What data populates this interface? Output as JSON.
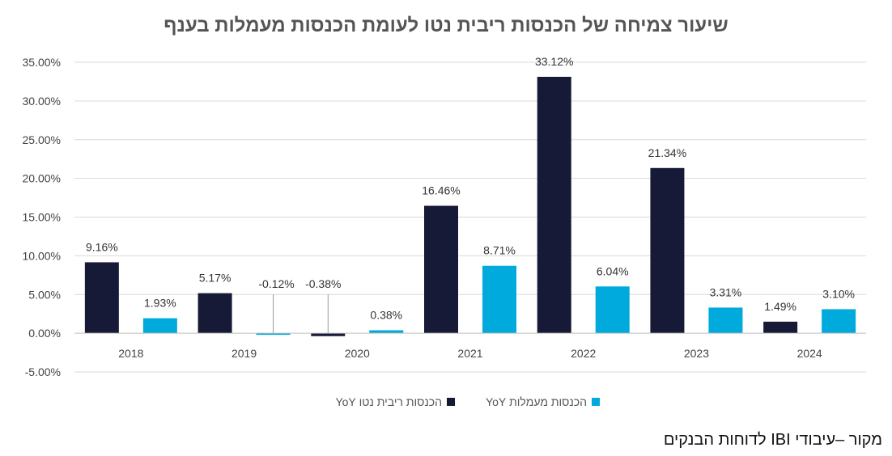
{
  "chart_data": {
    "type": "bar",
    "title": "שיעור צמיחה של הכנסות ריבית נטו לעומת הכנסות מעמלות בענף",
    "categories": [
      "2018",
      "2019",
      "2020",
      "2021",
      "2022",
      "2023",
      "2024"
    ],
    "series": [
      {
        "name": "הכנסות ריבית נטו YoY",
        "color": "#161a36",
        "values": [
          9.16,
          5.17,
          -0.38,
          16.46,
          33.12,
          21.34,
          1.49
        ],
        "labels": [
          "9.16%",
          "5.17%",
          "-0.38%",
          "16.46%",
          "33.12%",
          "21.34%",
          "1.49%"
        ]
      },
      {
        "name": "הכנסות מעמלות YoY",
        "color": "#00aadc",
        "values": [
          1.93,
          -0.12,
          0.38,
          8.71,
          6.04,
          3.31,
          3.1
        ],
        "labels": [
          "1.93%",
          "-0.12%",
          "0.38%",
          "8.71%",
          "6.04%",
          "3.31%",
          "3.10%"
        ]
      }
    ],
    "ylim": [
      -5,
      35
    ],
    "yticks": [
      35,
      30,
      25,
      20,
      15,
      10,
      5,
      0,
      -5
    ],
    "ytick_labels": [
      "35.00%",
      "30.00%",
      "25.00%",
      "20.00%",
      "15.00%",
      "10.00%",
      "5.00%",
      "0.00%",
      "-5.00%"
    ],
    "grid": true,
    "legend": "bottom"
  },
  "source_note": "מקור –עיבודי IBI לדוחות הבנקים"
}
